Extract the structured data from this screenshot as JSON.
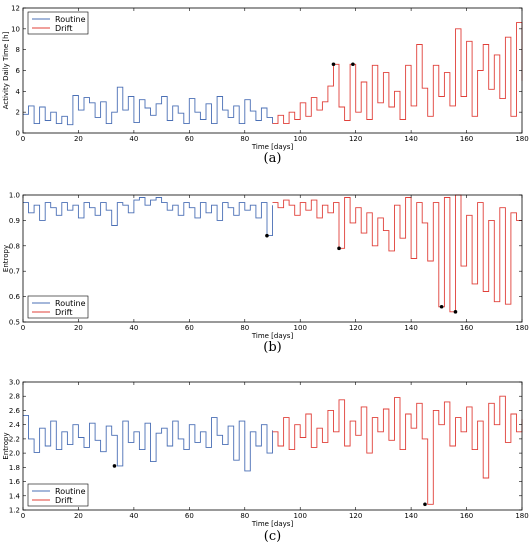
{
  "chart_data": [
    {
      "type": "line",
      "panel_label": "(a)",
      "xlabel": "Time [days]",
      "ylabel": "Activity Daily Time [h]",
      "xlim": [
        0,
        180
      ],
      "ylim": [
        0,
        12
      ],
      "xticks": [
        0,
        20,
        40,
        60,
        80,
        100,
        120,
        140,
        160,
        180
      ],
      "yticks": [
        0,
        2,
        4,
        6,
        8,
        10,
        12
      ],
      "legend_position": "top-left",
      "grid": false,
      "step": true,
      "series": [
        {
          "name": "Routine",
          "color": "#4a6fb5",
          "x": [
            0,
            2,
            4,
            6,
            8,
            10,
            12,
            14,
            16,
            18,
            20,
            22,
            24,
            26,
            28,
            30,
            32,
            34,
            36,
            38,
            40,
            42,
            44,
            46,
            48,
            50,
            52,
            54,
            56,
            58,
            60,
            62,
            64,
            66,
            68,
            70,
            72,
            74,
            76,
            78,
            80,
            82,
            84,
            86,
            88,
            90
          ],
          "y": [
            1.8,
            2.6,
            0.9,
            2.5,
            1.2,
            2.0,
            0.9,
            1.6,
            0.8,
            3.6,
            2.2,
            3.4,
            2.9,
            1.5,
            3.0,
            0.9,
            2.0,
            4.4,
            2.2,
            3.5,
            1.0,
            3.2,
            2.4,
            1.7,
            2.8,
            3.5,
            1.2,
            2.6,
            1.9,
            0.9,
            3.3,
            2.0,
            1.3,
            2.8,
            0.9,
            3.5,
            2.2,
            1.5,
            2.6,
            0.9,
            3.2,
            2.1,
            1.2,
            2.4,
            1.5,
            0.9
          ]
        },
        {
          "name": "Drift",
          "color": "#e0403a",
          "x": [
            90,
            92,
            94,
            96,
            98,
            100,
            102,
            104,
            106,
            108,
            110,
            112,
            114,
            116,
            118,
            120,
            122,
            124,
            126,
            128,
            130,
            132,
            134,
            136,
            138,
            140,
            142,
            144,
            146,
            148,
            150,
            152,
            154,
            156,
            158,
            160,
            162,
            164,
            166,
            168,
            170,
            172,
            174,
            176,
            178,
            180
          ],
          "y": [
            0.9,
            1.7,
            0.9,
            2.0,
            1.3,
            2.9,
            1.6,
            3.4,
            2.2,
            3.0,
            4.5,
            6.6,
            2.5,
            1.2,
            6.6,
            2.0,
            4.9,
            1.3,
            6.5,
            2.9,
            5.8,
            2.5,
            4.0,
            1.3,
            6.5,
            2.6,
            8.5,
            4.3,
            1.6,
            6.5,
            3.5,
            5.8,
            2.6,
            10.0,
            3.5,
            8.8,
            1.6,
            6.0,
            8.5,
            4.2,
            7.5,
            3.3,
            9.2,
            1.6,
            10.6,
            5.0
          ]
        }
      ],
      "markers": [
        {
          "series": "Drift",
          "x": 112,
          "y": 6.6
        },
        {
          "series": "Drift",
          "x": 119,
          "y": 6.6
        }
      ]
    },
    {
      "type": "line",
      "panel_label": "(b)",
      "xlabel": "Time [days]",
      "ylabel": "Entropy",
      "xlim": [
        0,
        180
      ],
      "ylim": [
        0.5,
        1.0
      ],
      "xticks": [
        0,
        20,
        40,
        60,
        80,
        100,
        120,
        140,
        160,
        180
      ],
      "yticks": [
        0.5,
        0.6,
        0.7,
        0.8,
        0.9,
        1.0
      ],
      "legend_position": "bottom-left",
      "grid": false,
      "step": true,
      "series": [
        {
          "name": "Routine",
          "color": "#4a6fb5",
          "x": [
            0,
            2,
            4,
            6,
            8,
            10,
            12,
            14,
            16,
            18,
            20,
            22,
            24,
            26,
            28,
            30,
            32,
            34,
            36,
            38,
            40,
            42,
            44,
            46,
            48,
            50,
            52,
            54,
            56,
            58,
            60,
            62,
            64,
            66,
            68,
            70,
            72,
            74,
            76,
            78,
            80,
            82,
            84,
            86,
            88,
            90
          ],
          "y": [
            0.97,
            0.93,
            0.96,
            0.9,
            0.97,
            0.95,
            0.92,
            0.97,
            0.94,
            0.96,
            0.91,
            0.97,
            0.95,
            0.92,
            0.97,
            0.94,
            0.88,
            0.97,
            0.96,
            0.93,
            0.98,
            0.99,
            0.96,
            0.98,
            0.99,
            0.97,
            0.94,
            0.96,
            0.92,
            0.97,
            0.95,
            0.91,
            0.97,
            0.93,
            0.96,
            0.9,
            0.97,
            0.95,
            0.92,
            0.97,
            0.94,
            0.96,
            0.91,
            0.97,
            0.84,
            0.96
          ]
        },
        {
          "name": "Drift",
          "color": "#e0403a",
          "x": [
            90,
            92,
            94,
            96,
            98,
            100,
            102,
            104,
            106,
            108,
            110,
            112,
            114,
            116,
            118,
            120,
            122,
            124,
            126,
            128,
            130,
            132,
            134,
            136,
            138,
            140,
            142,
            144,
            146,
            148,
            150,
            152,
            154,
            156,
            158,
            160,
            162,
            164,
            166,
            168,
            170,
            172,
            174,
            176,
            178,
            180
          ],
          "y": [
            0.97,
            0.95,
            0.98,
            0.96,
            0.92,
            0.97,
            0.94,
            0.98,
            0.91,
            0.96,
            0.93,
            0.97,
            0.79,
            0.99,
            0.89,
            0.95,
            0.85,
            0.93,
            0.8,
            0.91,
            0.86,
            0.78,
            0.96,
            0.83,
            0.99,
            0.75,
            0.97,
            0.89,
            0.74,
            0.97,
            0.56,
            0.99,
            0.54,
            1.0,
            0.72,
            0.92,
            0.65,
            0.97,
            0.62,
            0.9,
            0.58,
            0.95,
            0.57,
            0.93,
            0.9,
            0.9
          ]
        }
      ],
      "markers": [
        {
          "series": "Routine",
          "x": 88,
          "y": 0.84
        },
        {
          "series": "Drift",
          "x": 114,
          "y": 0.79
        },
        {
          "series": "Drift",
          "x": 151,
          "y": 0.56
        },
        {
          "series": "Drift",
          "x": 156,
          "y": 0.54
        }
      ]
    },
    {
      "type": "line",
      "panel_label": "(c)",
      "xlabel": "Time [days]",
      "ylabel": "Entropy",
      "xlim": [
        0,
        180
      ],
      "ylim": [
        1.2,
        3.0
      ],
      "xticks": [
        0,
        20,
        40,
        60,
        80,
        100,
        120,
        140,
        160,
        180
      ],
      "yticks": [
        1.2,
        1.4,
        1.6,
        1.8,
        2.0,
        2.2,
        2.4,
        2.6,
        2.8,
        3.0
      ],
      "legend_position": "bottom-left",
      "grid": false,
      "step": true,
      "series": [
        {
          "name": "Routine",
          "color": "#4a6fb5",
          "x": [
            0,
            2,
            4,
            6,
            8,
            10,
            12,
            14,
            16,
            18,
            20,
            22,
            24,
            26,
            28,
            30,
            32,
            34,
            36,
            38,
            40,
            42,
            44,
            46,
            48,
            50,
            52,
            54,
            56,
            58,
            60,
            62,
            64,
            66,
            68,
            70,
            72,
            74,
            76,
            78,
            80,
            82,
            84,
            86,
            88,
            90
          ],
          "y": [
            2.53,
            2.2,
            2.01,
            2.35,
            2.1,
            2.45,
            2.05,
            2.3,
            2.12,
            2.4,
            2.22,
            2.08,
            2.42,
            2.18,
            2.02,
            2.38,
            2.25,
            1.82,
            2.45,
            2.15,
            2.3,
            2.05,
            2.42,
            1.88,
            2.28,
            2.35,
            2.1,
            2.45,
            2.2,
            2.05,
            2.4,
            2.15,
            2.3,
            2.08,
            2.5,
            2.25,
            2.12,
            2.38,
            1.9,
            2.45,
            1.75,
            2.3,
            2.1,
            2.4,
            2.0,
            2.32
          ]
        },
        {
          "name": "Drift",
          "color": "#e0403a",
          "x": [
            90,
            92,
            94,
            96,
            98,
            100,
            102,
            104,
            106,
            108,
            110,
            112,
            114,
            116,
            118,
            120,
            122,
            124,
            126,
            128,
            130,
            132,
            134,
            136,
            138,
            140,
            142,
            144,
            146,
            148,
            150,
            152,
            154,
            156,
            158,
            160,
            162,
            164,
            166,
            168,
            170,
            172,
            174,
            176,
            178,
            180
          ],
          "y": [
            2.3,
            2.1,
            2.5,
            2.05,
            2.4,
            2.22,
            2.55,
            2.08,
            2.35,
            2.15,
            2.6,
            2.3,
            2.75,
            2.1,
            2.45,
            2.25,
            2.65,
            2.0,
            2.5,
            2.3,
            2.62,
            2.18,
            2.78,
            2.05,
            2.55,
            2.35,
            2.7,
            2.2,
            1.28,
            2.6,
            2.4,
            2.72,
            2.1,
            2.5,
            2.3,
            2.65,
            2.05,
            2.45,
            1.65,
            2.7,
            2.4,
            2.8,
            2.15,
            2.55,
            2.3,
            2.48
          ]
        }
      ],
      "markers": [
        {
          "series": "Routine",
          "x": 33,
          "y": 1.82
        },
        {
          "series": "Drift",
          "x": 145,
          "y": 1.28
        }
      ]
    }
  ]
}
